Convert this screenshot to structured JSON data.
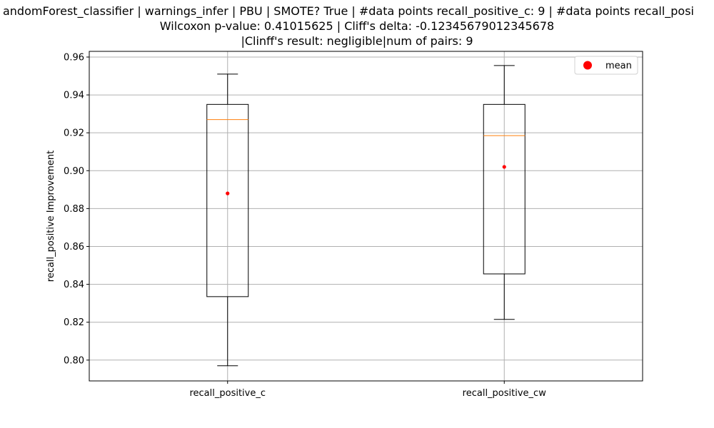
{
  "chart_data": {
    "type": "box",
    "title_lines": [
      "andomForest_classifier | warnings_infer | PBU | SMOTE? True | #data points recall_positive_c: 9 | #data points recall_posi",
      "Wilcoxon p-value: 0.41015625 | Cliff's delta: -0.12345679012345678",
      "|Clinff's result: negligible|num of pairs: 9"
    ],
    "xlabel": "",
    "ylabel": "recall_positive Improvement",
    "ylim": [
      0.789,
      0.963
    ],
    "yticks": [
      0.8,
      0.82,
      0.84,
      0.86,
      0.88,
      0.9,
      0.92,
      0.94,
      0.96
    ],
    "ytick_labels": [
      "0.80",
      "0.82",
      "0.84",
      "0.86",
      "0.88",
      "0.90",
      "0.92",
      "0.94",
      "0.96"
    ],
    "grid": true,
    "legend": {
      "placement": "top-right",
      "entries": [
        {
          "label": "mean",
          "color": "#ff0000",
          "marker": "circle"
        }
      ]
    },
    "categories": [
      "recall_positive_c",
      "recall_positive_cw"
    ],
    "boxes": [
      {
        "name": "recall_positive_c",
        "whisker_low": 0.797,
        "q1": 0.8335,
        "median": 0.927,
        "q3": 0.935,
        "whisker_high": 0.951,
        "mean": 0.888
      },
      {
        "name": "recall_positive_cw",
        "whisker_low": 0.8215,
        "q1": 0.8455,
        "median": 0.9185,
        "q3": 0.935,
        "whisker_high": 0.9555,
        "mean": 0.902
      }
    ],
    "colors": {
      "box": "#000000",
      "median": "#ff7f0e",
      "mean": "#ff0000",
      "grid": "#b0b0b0"
    }
  }
}
